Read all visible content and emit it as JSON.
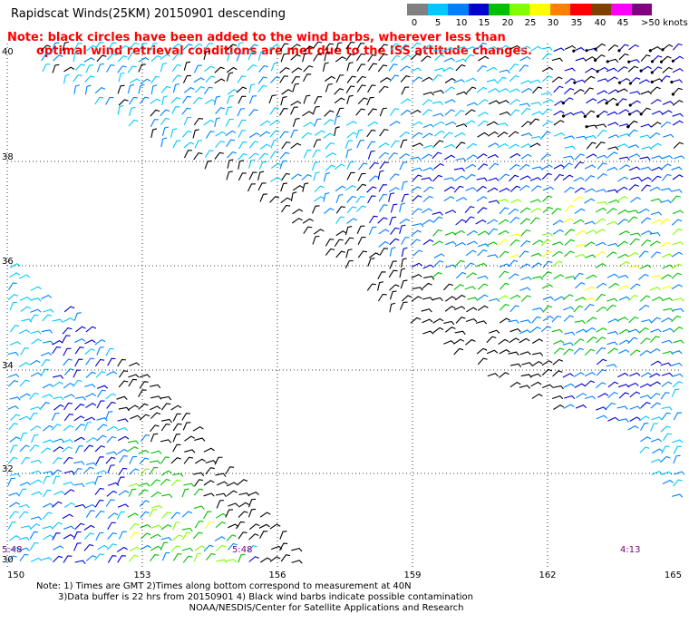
{
  "title": "Rapidscat Winds(25KM) 20150901 descending",
  "note": {
    "line1": "Note: black circles have been added to the wind barbs, wherever less than",
    "line2": "optimal wind retrieval conditions are met due to the ISS attitude changes."
  },
  "wind_scale": {
    "labels": [
      "0",
      "5",
      "10",
      "15",
      "20",
      "25",
      "30",
      "35",
      "40",
      "45",
      ">50 knots"
    ],
    "colors": [
      "#808080",
      "#00c8ff",
      "#0080ff",
      "#0000d0",
      "#00c000",
      "#80ff00",
      "#ffff00",
      "#ff8000",
      "#ff0000",
      "#804000",
      "#ff00ff",
      "#800080"
    ]
  },
  "map": {
    "lat_labels": [
      "40",
      "38",
      "36",
      "34",
      "32",
      "30"
    ],
    "lon_labels": [
      "150",
      "153",
      "156",
      "159",
      "162",
      "165"
    ],
    "time_labels": [
      "5:48",
      "5:48",
      "4:13"
    ]
  },
  "footer": {
    "line1": "Note: 1) Times are GMT 2)Times along bottom correspond to measurement at 40N",
    "line2": "3)Data buffer is 22 hrs from 20150901 4) Black wind barbs indicate possible contamination",
    "line3": "NOAA/NESDIS/Center for Satellite Applications and Research"
  }
}
